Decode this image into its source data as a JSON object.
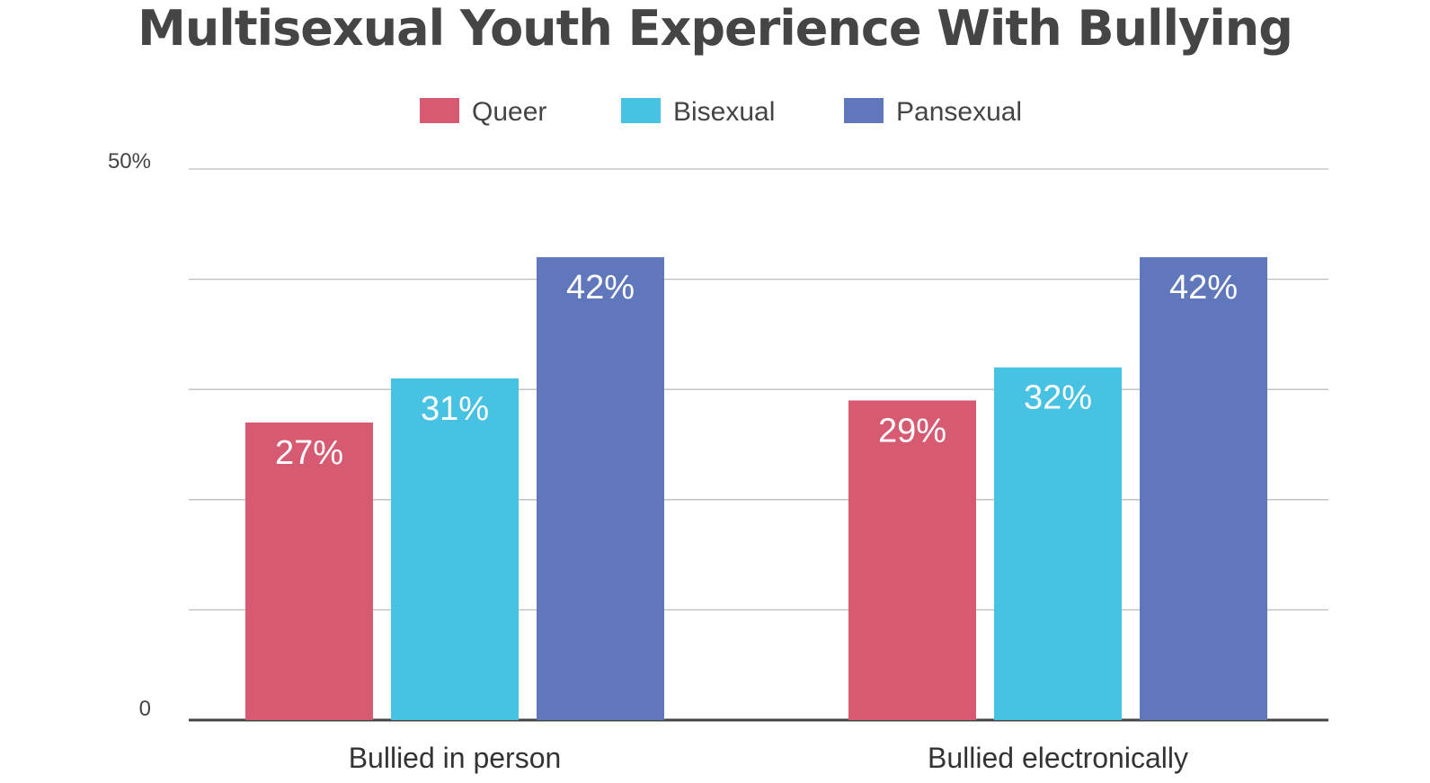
{
  "chart_data": {
    "type": "bar",
    "title": "Multisexual Youth Experience With Bullying",
    "categories": [
      "Bullied in person",
      "Bullied electronically"
    ],
    "series": [
      {
        "name": "Queer",
        "color": "#d65b72",
        "values": [
          27,
          29
        ]
      },
      {
        "name": "Bisexual",
        "color": "#48c2e3",
        "values": [
          31,
          32
        ]
      },
      {
        "name": "Pansexual",
        "color": "#6078bb",
        "values": [
          42,
          42
        ]
      }
    ],
    "data_labels": [
      [
        "27%",
        "29%"
      ],
      [
        "31%",
        "32%"
      ],
      [
        "42%",
        "42%"
      ]
    ],
    "y_tick_labels": [
      "0",
      "50%"
    ],
    "ylim": [
      0,
      50
    ],
    "gridlines": [
      10,
      20,
      30,
      40,
      50
    ],
    "legend_position": "top-center",
    "grid": true
  }
}
